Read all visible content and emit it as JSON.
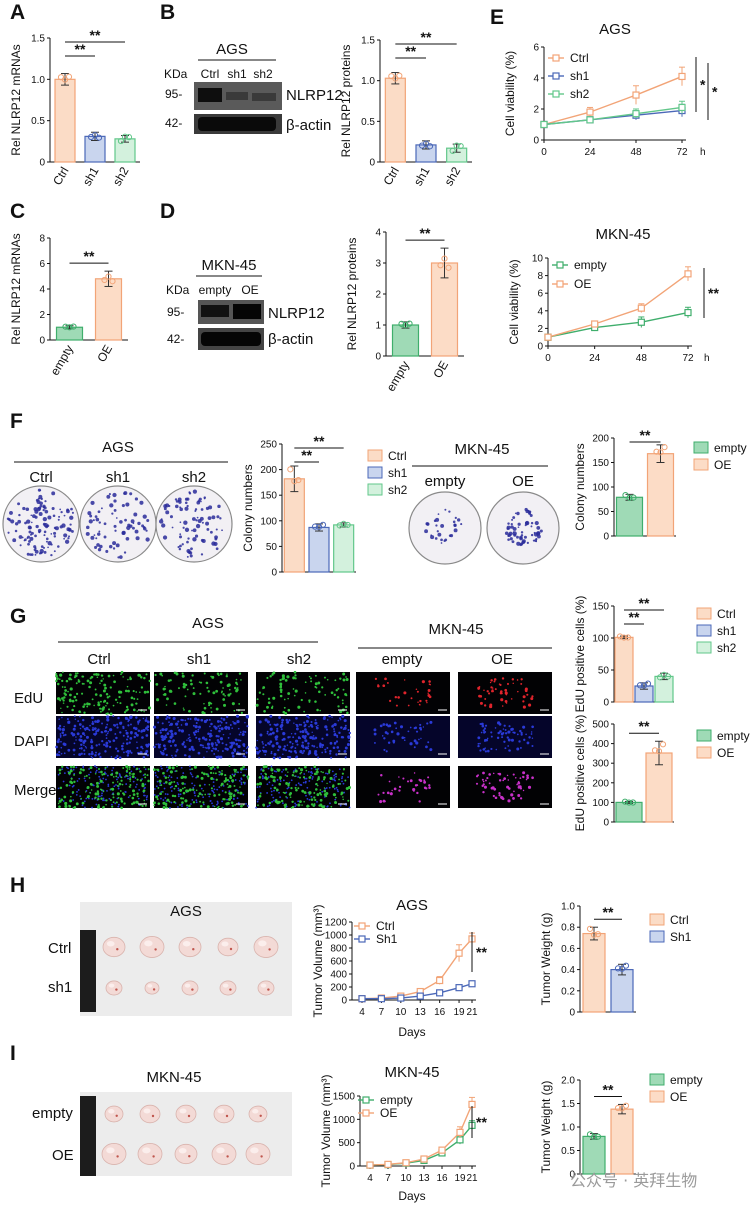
{
  "colors": {
    "ctrl_fill": "#fbdcc6",
    "ctrl_line": "#f2a477",
    "sh1_fill": "#c9d5ee",
    "sh1_line": "#4b68b8",
    "sh2_fill": "#d3f1dd",
    "sh2_line": "#62c78a",
    "empty_fill": "#9fdab6",
    "empty_line": "#3fae6c",
    "oe_fill": "#fcdcc6",
    "oe_line": "#f2a477",
    "edu_green": "#2fbf3b",
    "edu_red": "#e0242c",
    "dapi_blue": "#2a3ad8",
    "merge_magenta": "#c830c8",
    "stain": "#2a2b9a"
  },
  "panels": {
    "A": "A",
    "B": "B",
    "C": "C",
    "D": "D",
    "E": "E",
    "F": "F",
    "G": "G",
    "H": "H",
    "I": "I"
  },
  "sig": {
    "double": "**",
    "single": "*"
  },
  "common": {
    "kda": "KDa",
    "mw95": "95-",
    "mw42": "42-",
    "nlrp12": "NLRP12",
    "bactin": "β-actin",
    "hours_unit": "h",
    "days": "Days"
  },
  "B": {
    "title": "AGS",
    "lanes": [
      "Ctrl",
      "sh1",
      "sh2"
    ]
  },
  "D": {
    "title": "MKN-45",
    "lanes": [
      "empty",
      "OE"
    ]
  },
  "F": {
    "ags_title": "AGS",
    "ags_labels": [
      "Ctrl",
      "sh1",
      "sh2"
    ],
    "mkn_title": "MKN-45",
    "mkn_labels": [
      "empty",
      "OE"
    ]
  },
  "G": {
    "ags_title": "AGS",
    "mkn_title": "MKN-45",
    "cols": [
      "Ctrl",
      "sh1",
      "sh2",
      "empty",
      "OE"
    ],
    "rows": [
      "EdU",
      "DAPI",
      "Merge"
    ]
  },
  "H": {
    "title": "AGS",
    "rows": [
      "Ctrl",
      "sh1"
    ]
  },
  "I": {
    "title": "MKN-45",
    "rows": [
      "empty",
      "OE"
    ]
  },
  "watermark": "公众号 · 英拜生物",
  "chart_data": [
    {
      "id": "A",
      "type": "bar",
      "categories": [
        "Ctrl",
        "sh1",
        "sh2"
      ],
      "values": [
        1.0,
        0.31,
        0.28
      ],
      "errors": [
        0.07,
        0.05,
        0.04
      ],
      "ylabel": "Rel NLRP12 mRNAs",
      "ylim": [
        0,
        1.5
      ],
      "yticks": [
        0,
        0.5,
        1.0,
        1.5
      ],
      "sig": [
        [
          "Ctrl",
          "sh1",
          "**"
        ],
        [
          "Ctrl",
          "sh2",
          "**"
        ]
      ]
    },
    {
      "id": "B",
      "type": "bar",
      "categories": [
        "Ctrl",
        "sh1",
        "sh2"
      ],
      "values": [
        1.03,
        0.21,
        0.17
      ],
      "errors": [
        0.07,
        0.05,
        0.05
      ],
      "ylabel": "Rel NLRP12 proteins",
      "ylim": [
        0,
        1.5
      ],
      "yticks": [
        0,
        0.5,
        1.0,
        1.5
      ],
      "sig": [
        [
          "Ctrl",
          "sh1",
          "**"
        ],
        [
          "Ctrl",
          "sh2",
          "**"
        ]
      ]
    },
    {
      "id": "C",
      "type": "bar",
      "categories": [
        "empty",
        "OE"
      ],
      "values": [
        1.0,
        4.8
      ],
      "errors": [
        0.12,
        0.6
      ],
      "ylabel": "Rel NLRP12 mRNAs",
      "ylim": [
        0,
        8
      ],
      "yticks": [
        0,
        2,
        4,
        6,
        8
      ],
      "sig": [
        [
          "empty",
          "OE",
          "**"
        ]
      ]
    },
    {
      "id": "D",
      "type": "bar",
      "categories": [
        "empty",
        "OE"
      ],
      "values": [
        1.0,
        3.0
      ],
      "errors": [
        0.1,
        0.48
      ],
      "ylabel": "Rel NLRP12 proteins",
      "ylim": [
        0,
        4
      ],
      "yticks": [
        0,
        1,
        2,
        3,
        4
      ],
      "sig": [
        [
          "empty",
          "OE",
          "**"
        ]
      ]
    },
    {
      "id": "E1",
      "type": "line",
      "title": "AGS",
      "x": [
        0,
        24,
        48,
        72
      ],
      "xlabel": "h",
      "ylabel": "Cell viability (%)",
      "ylim": [
        0,
        6
      ],
      "yticks": [
        0,
        2,
        4,
        6
      ],
      "series": [
        {
          "name": "Ctrl",
          "values": [
            1.0,
            1.8,
            2.9,
            4.1
          ],
          "errors": [
            0.1,
            0.3,
            0.6,
            0.6
          ]
        },
        {
          "name": "sh1",
          "values": [
            1.0,
            1.3,
            1.6,
            1.9
          ],
          "errors": [
            0.1,
            0.2,
            0.3,
            0.4
          ]
        },
        {
          "name": "sh2",
          "values": [
            1.0,
            1.3,
            1.7,
            2.1
          ],
          "errors": [
            0.1,
            0.2,
            0.3,
            0.4
          ]
        }
      ],
      "sig": [
        "*",
        "*"
      ]
    },
    {
      "id": "E2",
      "type": "line",
      "title": "MKN-45",
      "x": [
        0,
        24,
        48,
        72
      ],
      "xlabel": "h",
      "ylabel": "Cell viability (%)",
      "ylim": [
        0,
        10
      ],
      "yticks": [
        0,
        2,
        4,
        6,
        8,
        10
      ],
      "series": [
        {
          "name": "empty",
          "values": [
            1.0,
            2.1,
            2.7,
            3.8
          ],
          "errors": [
            0.2,
            0.4,
            0.6,
            0.6
          ]
        },
        {
          "name": "OE",
          "values": [
            1.0,
            2.5,
            4.3,
            8.2
          ],
          "errors": [
            0.2,
            0.3,
            0.5,
            0.8
          ]
        }
      ],
      "sig": [
        "**"
      ]
    },
    {
      "id": "F1",
      "type": "bar",
      "categories": [
        "Ctrl",
        "sh1",
        "sh2"
      ],
      "values": [
        182,
        87,
        92
      ],
      "errors": [
        25,
        7,
        4
      ],
      "ylabel": "Colony numbers",
      "ylim": [
        0,
        250
      ],
      "yticks": [
        0,
        50,
        100,
        150,
        200,
        250
      ],
      "sig": [
        [
          "Ctrl",
          "sh1",
          "**"
        ],
        [
          "Ctrl",
          "sh2",
          "**"
        ]
      ]
    },
    {
      "id": "F2",
      "type": "bar",
      "categories": [
        "empty",
        "OE"
      ],
      "values": [
        79,
        168
      ],
      "errors": [
        6,
        18
      ],
      "ylabel": "Colony numbers",
      "ylim": [
        0,
        200
      ],
      "yticks": [
        0,
        50,
        100,
        150,
        200
      ],
      "sig": [
        [
          "empty",
          "OE",
          "**"
        ]
      ]
    },
    {
      "id": "G1",
      "type": "bar",
      "categories": [
        "Ctrl",
        "sh1",
        "sh2"
      ],
      "values": [
        101,
        25,
        40
      ],
      "errors": [
        2,
        5,
        5
      ],
      "ylabel": "EdU positive cells (%)",
      "ylim": [
        0,
        150
      ],
      "yticks": [
        0,
        50,
        100,
        150
      ],
      "sig": [
        [
          "Ctrl",
          "sh1",
          "**"
        ],
        [
          "Ctrl",
          "sh2",
          "**"
        ]
      ]
    },
    {
      "id": "G2",
      "type": "bar",
      "categories": [
        "empty",
        "OE"
      ],
      "values": [
        100,
        352
      ],
      "errors": [
        5,
        60
      ],
      "ylabel": "EdU positive cells (%)",
      "ylim": [
        0,
        500
      ],
      "yticks": [
        0,
        100,
        200,
        300,
        400,
        500
      ],
      "sig": [
        [
          "empty",
          "OE",
          "**"
        ]
      ]
    },
    {
      "id": "H1",
      "type": "line",
      "title": "AGS",
      "x": [
        4,
        7,
        10,
        13,
        16,
        19,
        21
      ],
      "xlabel": "Days",
      "ylabel": "Tumor Volume (mm³)",
      "ylim": [
        0,
        1200
      ],
      "yticks": [
        0,
        200,
        400,
        600,
        800,
        1000,
        1200
      ],
      "series": [
        {
          "name": "Ctrl",
          "values": [
            20,
            30,
            60,
            130,
            300,
            720,
            940
          ],
          "errors": [
            5,
            10,
            15,
            30,
            60,
            130,
            90
          ]
        },
        {
          "name": "Sh1",
          "values": [
            20,
            20,
            30,
            60,
            110,
            190,
            250
          ],
          "errors": [
            5,
            5,
            10,
            15,
            20,
            30,
            30
          ]
        }
      ],
      "sig": [
        "**"
      ]
    },
    {
      "id": "H2",
      "type": "bar",
      "categories": [
        "Ctrl",
        "Sh1"
      ],
      "values": [
        0.74,
        0.4
      ],
      "errors": [
        0.06,
        0.05
      ],
      "ylabel": "Tumor Weight (g)",
      "ylim": [
        0,
        1.0
      ],
      "yticks": [
        0,
        0.2,
        0.4,
        0.6,
        0.8,
        1.0
      ],
      "sig": [
        [
          "Ctrl",
          "Sh1",
          "**"
        ]
      ]
    },
    {
      "id": "I1",
      "type": "line",
      "title": "MKN-45",
      "x": [
        4,
        7,
        10,
        13,
        16,
        19,
        21
      ],
      "xlabel": "Days",
      "ylabel": "Tumor Volume (mm³)",
      "ylim": [
        0,
        1500
      ],
      "yticks": [
        0,
        500,
        1000,
        1500
      ],
      "series": [
        {
          "name": "empty",
          "values": [
            20,
            30,
            60,
            120,
            280,
            560,
            870
          ],
          "errors": [
            5,
            10,
            15,
            25,
            50,
            90,
            100
          ]
        },
        {
          "name": "OE",
          "values": [
            20,
            35,
            70,
            150,
            340,
            720,
            1320
          ],
          "errors": [
            5,
            10,
            15,
            30,
            60,
            120,
            150
          ]
        }
      ],
      "sig": [
        "**"
      ]
    },
    {
      "id": "I2",
      "type": "bar",
      "categories": [
        "empty",
        "OE"
      ],
      "values": [
        0.8,
        1.38
      ],
      "errors": [
        0.06,
        0.1
      ],
      "ylabel": "Tumor Weight (g)",
      "ylim": [
        0,
        2.0
      ],
      "yticks": [
        0,
        0.5,
        1.0,
        1.5,
        2.0
      ],
      "sig": [
        [
          "empty",
          "OE",
          "**"
        ]
      ]
    }
  ]
}
